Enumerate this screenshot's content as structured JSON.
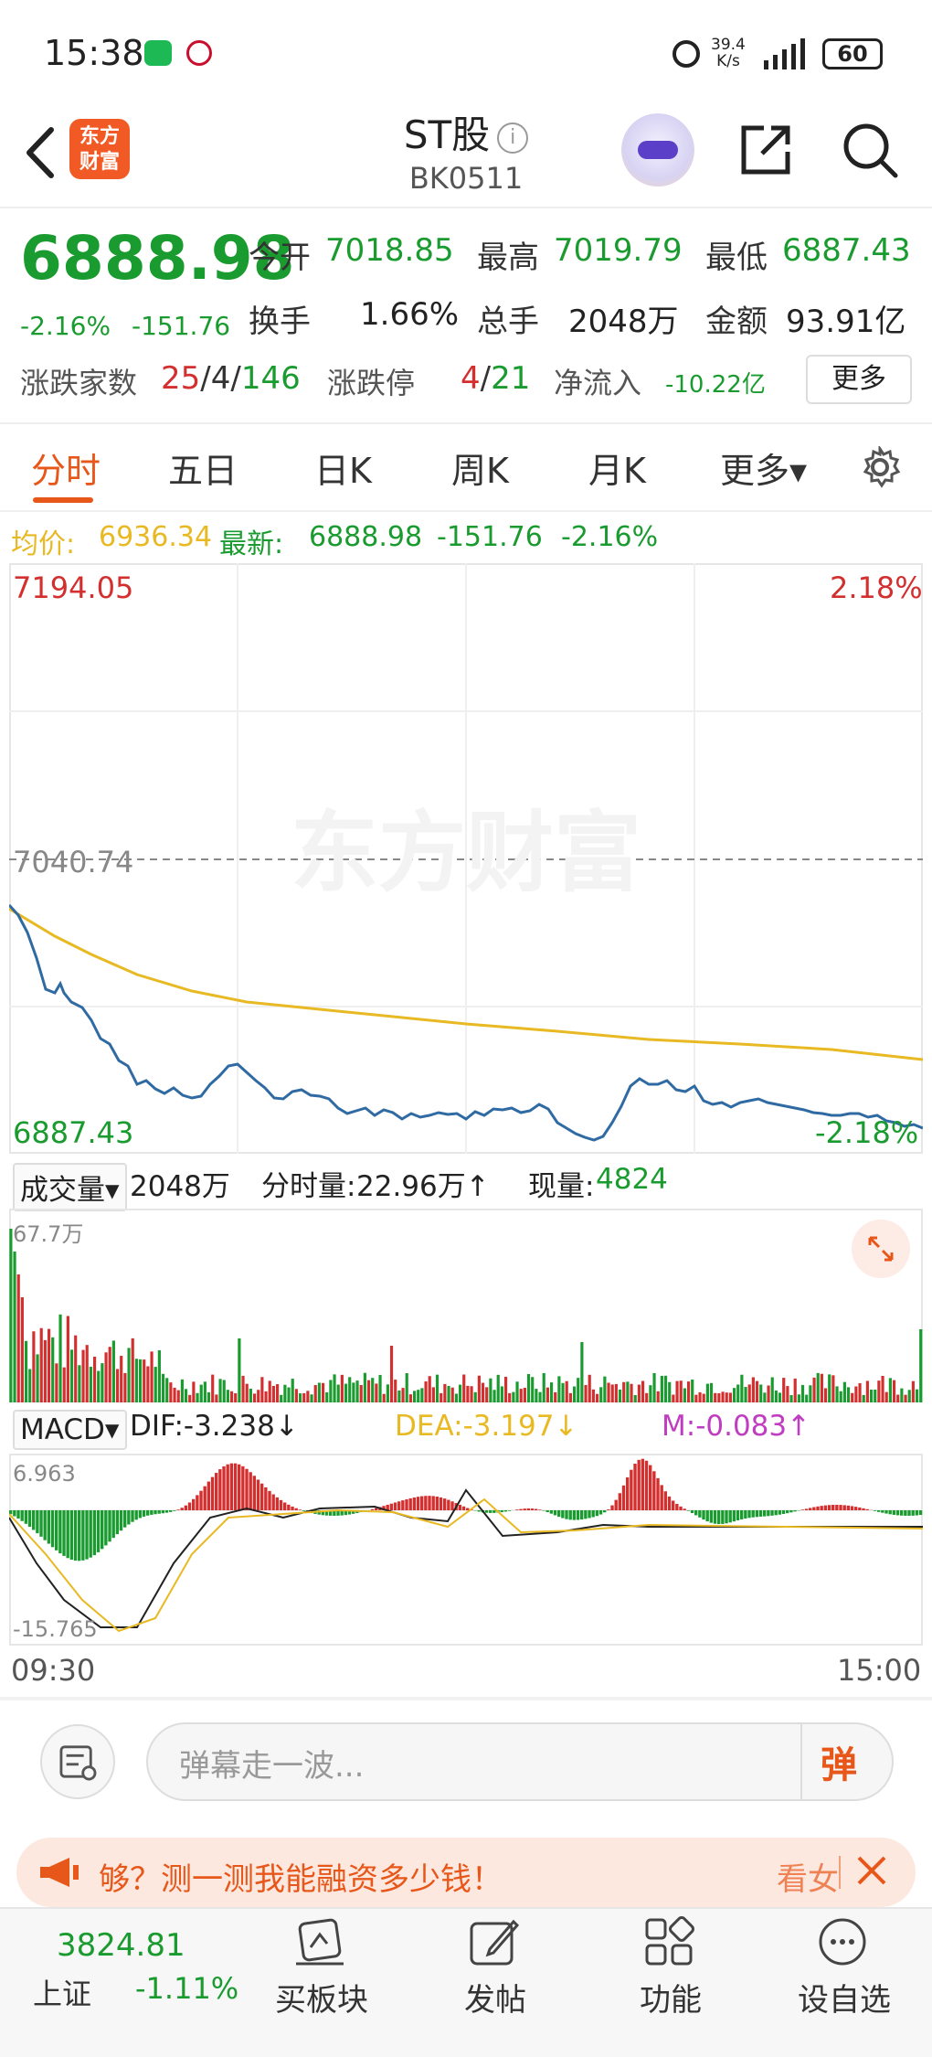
{
  "status_bar": {
    "time": "15:38",
    "net_speed_top": "39.4",
    "net_speed_bottom": "K/s",
    "battery": "60"
  },
  "header": {
    "title": "ST股",
    "code": "BK0511",
    "logo_line1": "东方",
    "logo_line2": "财富"
  },
  "quote": {
    "price": "6888.98",
    "change": "-2.16%",
    "change_abs": "-151.76",
    "open_label": "今开",
    "open": "7018.85",
    "high_label": "最高",
    "high": "7019.79",
    "low_label": "最低",
    "low": "6887.43",
    "turnover_label": "换手",
    "turnover": "1.66%",
    "volume_label": "总手",
    "volume": "2048万",
    "amount_label": "金额",
    "amount": "93.91亿",
    "updown_label": "涨跌家数",
    "up": "25",
    "sep1": "/",
    "flat": "4",
    "sep2": "/",
    "down": "146",
    "limit_label": "涨跌停",
    "limit_up": "4",
    "sep3": "/",
    "limit_down": "21",
    "netflow_label": "净流入",
    "netflow": "-10.22亿",
    "more": "更多"
  },
  "tabs": [
    {
      "label": "分时"
    },
    {
      "label": "五日"
    },
    {
      "label": "日K"
    },
    {
      "label": "周K"
    },
    {
      "label": "月K"
    },
    {
      "label": "更多▾"
    }
  ],
  "info_line": {
    "avg_label": "均价:",
    "avg": "6936.34",
    "latest_label": "最新:",
    "latest": "6888.98",
    "chg": "-151.76",
    "pct": "-2.16%"
  },
  "intraday": {
    "y_max_label": "7194.05",
    "y_max_pct": "2.18%",
    "y_ref_label": "7040.74",
    "y_min_label": "6887.43",
    "y_min_pct": "-2.18%",
    "watermark": "东方财富",
    "colors": {
      "price": "#2f6aa3",
      "avg": "#e8b923",
      "up": "#d32f2f",
      "down": "#1a9b2f"
    }
  },
  "volume": {
    "selector": "成交量▾",
    "total": "2048万",
    "tick_label": "分时量:",
    "tick_value": "22.96万↑",
    "now_label": "现量:",
    "now_value": "4824",
    "max_label": "67.7万"
  },
  "macd": {
    "selector": "MACD▾",
    "dif": "DIF:-3.238↓",
    "dea": "DEA:-3.197↓",
    "m": "M:-0.083↑",
    "max_label": "6.963",
    "min_label": "-15.765"
  },
  "time_axis": {
    "start": "09:30",
    "end": "15:00"
  },
  "danmaku": {
    "placeholder": "弹幕走一波...",
    "send": "弹"
  },
  "promo": {
    "text": "够？测一测我能融资多少钱！",
    "action": "看女"
  },
  "bottom_bar": {
    "index_value": "3824.81",
    "index_name": "上证",
    "index_pct": "-1.11%",
    "items": [
      {
        "label": "买板块"
      },
      {
        "label": "发帖"
      },
      {
        "label": "功能"
      },
      {
        "label": "设自选"
      }
    ]
  }
}
